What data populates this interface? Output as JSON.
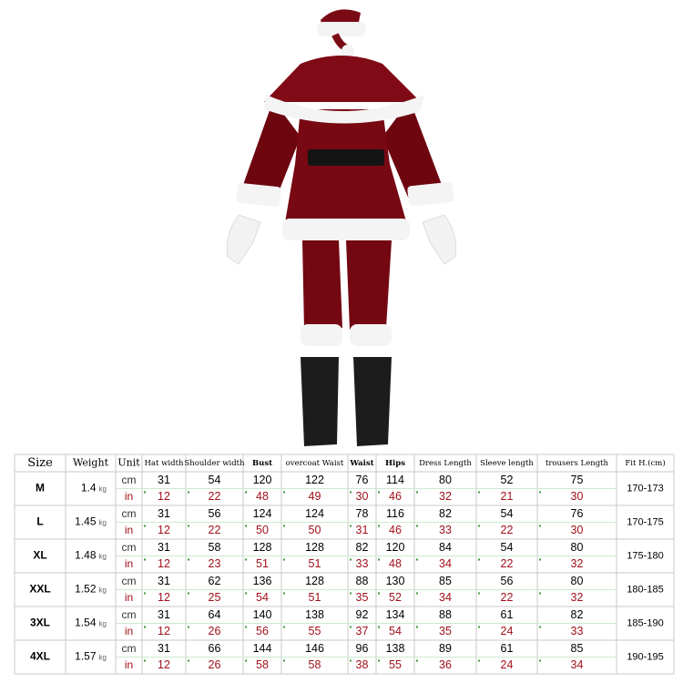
{
  "table": {
    "header": [
      "Size",
      "Weight",
      "Unit",
      "Hat width",
      "Shoulder width",
      "Bust",
      "overcoat Waist",
      "Waist",
      "Hips",
      "Dress Length",
      "Sleeve length",
      "trousers Length",
      "Fit H.(cm)"
    ],
    "rows": [
      {
        "size": "M",
        "weight": 1.4,
        "weight_unit": "kg",
        "cm_unit": "cm",
        "in_unit": "in",
        "cm": [
          31,
          54,
          120,
          122,
          76,
          114,
          80,
          52,
          75
        ],
        "in": [
          12,
          22,
          48,
          49,
          30,
          46,
          32,
          21,
          30
        ],
        "fit": "170-173"
      },
      {
        "size": "L",
        "weight": 1.45,
        "weight_unit": "kg",
        "cm_unit": "cm",
        "in_unit": "in",
        "cm": [
          31,
          56,
          124,
          124,
          78,
          116,
          82,
          54,
          76
        ],
        "in": [
          12,
          22,
          50,
          50,
          31,
          46,
          33,
          22,
          30
        ],
        "fit": "170-175"
      },
      {
        "size": "XL",
        "weight": 1.48,
        "weight_unit": "kg",
        "cm_unit": "cm",
        "in_unit": "in",
        "cm": [
          31,
          58,
          128,
          128,
          82,
          120,
          84,
          54,
          80
        ],
        "in": [
          12,
          23,
          51,
          51,
          33,
          48,
          34,
          22,
          32
        ],
        "fit": "175-180"
      },
      {
        "size": "XXL",
        "weight": 1.52,
        "weight_unit": "kg",
        "cm_unit": "cm",
        "in_unit": "in",
        "cm": [
          31,
          62,
          136,
          128,
          88,
          130,
          85,
          56,
          80
        ],
        "in": [
          12,
          25,
          54,
          51,
          35,
          52,
          34,
          22,
          32
        ],
        "fit": "180-185"
      },
      {
        "size": "3XL",
        "weight": 1.54,
        "weight_unit": "kg",
        "cm_unit": "cm",
        "in_unit": "in",
        "cm": [
          31,
          64,
          140,
          138,
          92,
          134,
          88,
          61,
          82
        ],
        "in": [
          12,
          26,
          56,
          55,
          37,
          54,
          35,
          24,
          33
        ],
        "fit": "185-190"
      },
      {
        "size": "4XL",
        "weight": 1.57,
        "weight_unit": "kg",
        "cm_unit": "cm",
        "in_unit": "in",
        "cm": [
          31,
          66,
          144,
          146,
          96,
          138,
          89,
          61,
          85
        ],
        "in": [
          12,
          26,
          58,
          58,
          38,
          55,
          36,
          24,
          34
        ],
        "fit": "190-195"
      }
    ]
  }
}
